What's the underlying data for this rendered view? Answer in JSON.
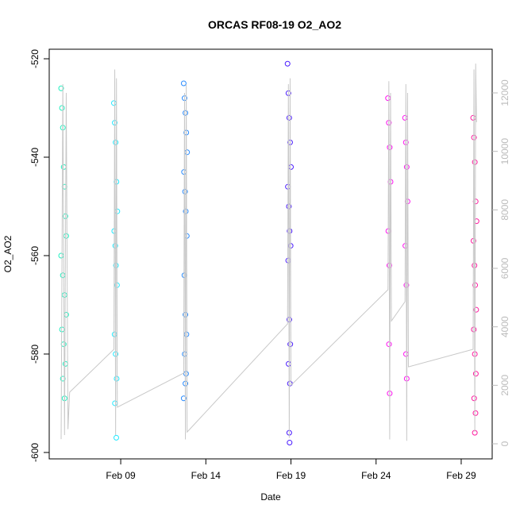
{
  "chart_data": {
    "type": "scatter",
    "title": "ORCAS RF08-19 O2_AO2",
    "xlabel": "Date",
    "ylabel": "O2_AO2",
    "xlim": [
      4.8,
      30.82
    ],
    "xticks": [
      {
        "value": 9,
        "label": "Feb 09"
      },
      {
        "value": 14,
        "label": "Feb 14"
      },
      {
        "value": 19,
        "label": "Feb 19"
      },
      {
        "value": 24,
        "label": "Feb 24"
      },
      {
        "value": 29,
        "label": "Feb 29"
      }
    ],
    "ylim": [
      -601.3,
      -518.06
    ],
    "yticks": [
      -600,
      -580,
      -560,
      -540,
      -520
    ],
    "y2lim": [
      -516,
      13493
    ],
    "y2ticks": [
      0,
      2000,
      4000,
      6000,
      8000,
      10000,
      12000
    ],
    "series": [
      {
        "color": "#20f0c0",
        "x": [
          5.5,
          5.55,
          5.6,
          5.65,
          5.7,
          5.75,
          5.8,
          5.5,
          5.6,
          5.7,
          5.8,
          5.55,
          5.65,
          5.75,
          5.6,
          5.7
        ],
        "values": [
          -526,
          -530,
          -534,
          -542,
          -546,
          -552,
          -556,
          -560,
          -564,
          -568,
          -572,
          -575,
          -578,
          -582,
          -585,
          -589
        ]
      },
      {
        "color": "#20e8ff",
        "x": [
          8.6,
          8.65,
          8.7,
          8.75,
          8.8,
          8.62,
          8.68,
          8.72,
          8.78,
          8.64,
          8.7,
          8.76,
          8.66,
          8.74
        ],
        "values": [
          -529,
          -533,
          -537,
          -545,
          -551,
          -555,
          -558,
          -562,
          -566,
          -576,
          -580,
          -585,
          -590,
          -597
        ]
      },
      {
        "color": "#2a8cff",
        "x": [
          12.7,
          12.75,
          12.8,
          12.85,
          12.9,
          12.72,
          12.78,
          12.82,
          12.88,
          12.74,
          12.8,
          12.86,
          12.76,
          12.84,
          12.8,
          12.7
        ],
        "values": [
          -525,
          -528,
          -531,
          -535,
          -539,
          -543,
          -547,
          -551,
          -556,
          -564,
          -572,
          -576,
          -580,
          -584,
          -586,
          -589
        ]
      },
      {
        "color": "#4a1cff",
        "x": [
          18.8,
          18.85,
          18.9,
          18.95,
          19.0,
          18.82,
          18.88,
          18.92,
          18.98,
          18.84,
          18.9,
          18.96,
          18.86,
          18.94,
          18.9,
          18.92
        ],
        "values": [
          -521,
          -527,
          -532,
          -537,
          -542,
          -546,
          -550,
          -555,
          -558,
          -561,
          -573,
          -578,
          -582,
          -586,
          -596,
          -598
        ]
      },
      {
        "color": "#ff10f0",
        "x": [
          24.7,
          24.75,
          24.8,
          24.85,
          25.7,
          25.75,
          25.8,
          25.85,
          24.72,
          24.78,
          25.72,
          25.78,
          24.76,
          25.76,
          24.8,
          25.8
        ],
        "values": [
          -528,
          -533,
          -538,
          -545,
          -532,
          -537,
          -542,
          -549,
          -555,
          -562,
          -558,
          -566,
          -578,
          -580,
          -588,
          -585
        ]
      },
      {
        "color": "#ff1aa0",
        "x": [
          29.7,
          29.75,
          29.8,
          29.85,
          29.9,
          29.72,
          29.78,
          29.82,
          29.88,
          29.74,
          29.8,
          29.86,
          29.76,
          29.84,
          29.8
        ],
        "values": [
          -532,
          -536,
          -541,
          -549,
          -553,
          -557,
          -562,
          -566,
          -571,
          -575,
          -580,
          -584,
          -589,
          -592,
          -596
        ]
      },
      {
        "color": "#c8c8c8",
        "axis": "y2",
        "line": true,
        "x": [
          5.5,
          5.6,
          5.7,
          5.8,
          5.9,
          6.0,
          8.6,
          8.65,
          8.7,
          8.75,
          8.8,
          12.7,
          12.75,
          12.8,
          12.85,
          12.9,
          18.8,
          18.85,
          18.9,
          18.95,
          19.0,
          24.7,
          24.75,
          24.8,
          24.85,
          24.9,
          25.7,
          25.75,
          25.8,
          25.85,
          25.9,
          29.7,
          29.75,
          29.8,
          29.85,
          29.9
        ],
        "values": [
          160,
          12300,
          300,
          12000,
          500,
          1765,
          3230,
          12800,
          300,
          12500,
          1250,
          2416,
          12000,
          150,
          12300,
          400,
          4100,
          12300,
          200,
          12500,
          2000,
          5270,
          12400,
          150,
          12000,
          4200,
          4860,
          12300,
          100,
          12000,
          2630,
          3230,
          12800,
          400,
          13000,
          11000
        ]
      }
    ]
  }
}
